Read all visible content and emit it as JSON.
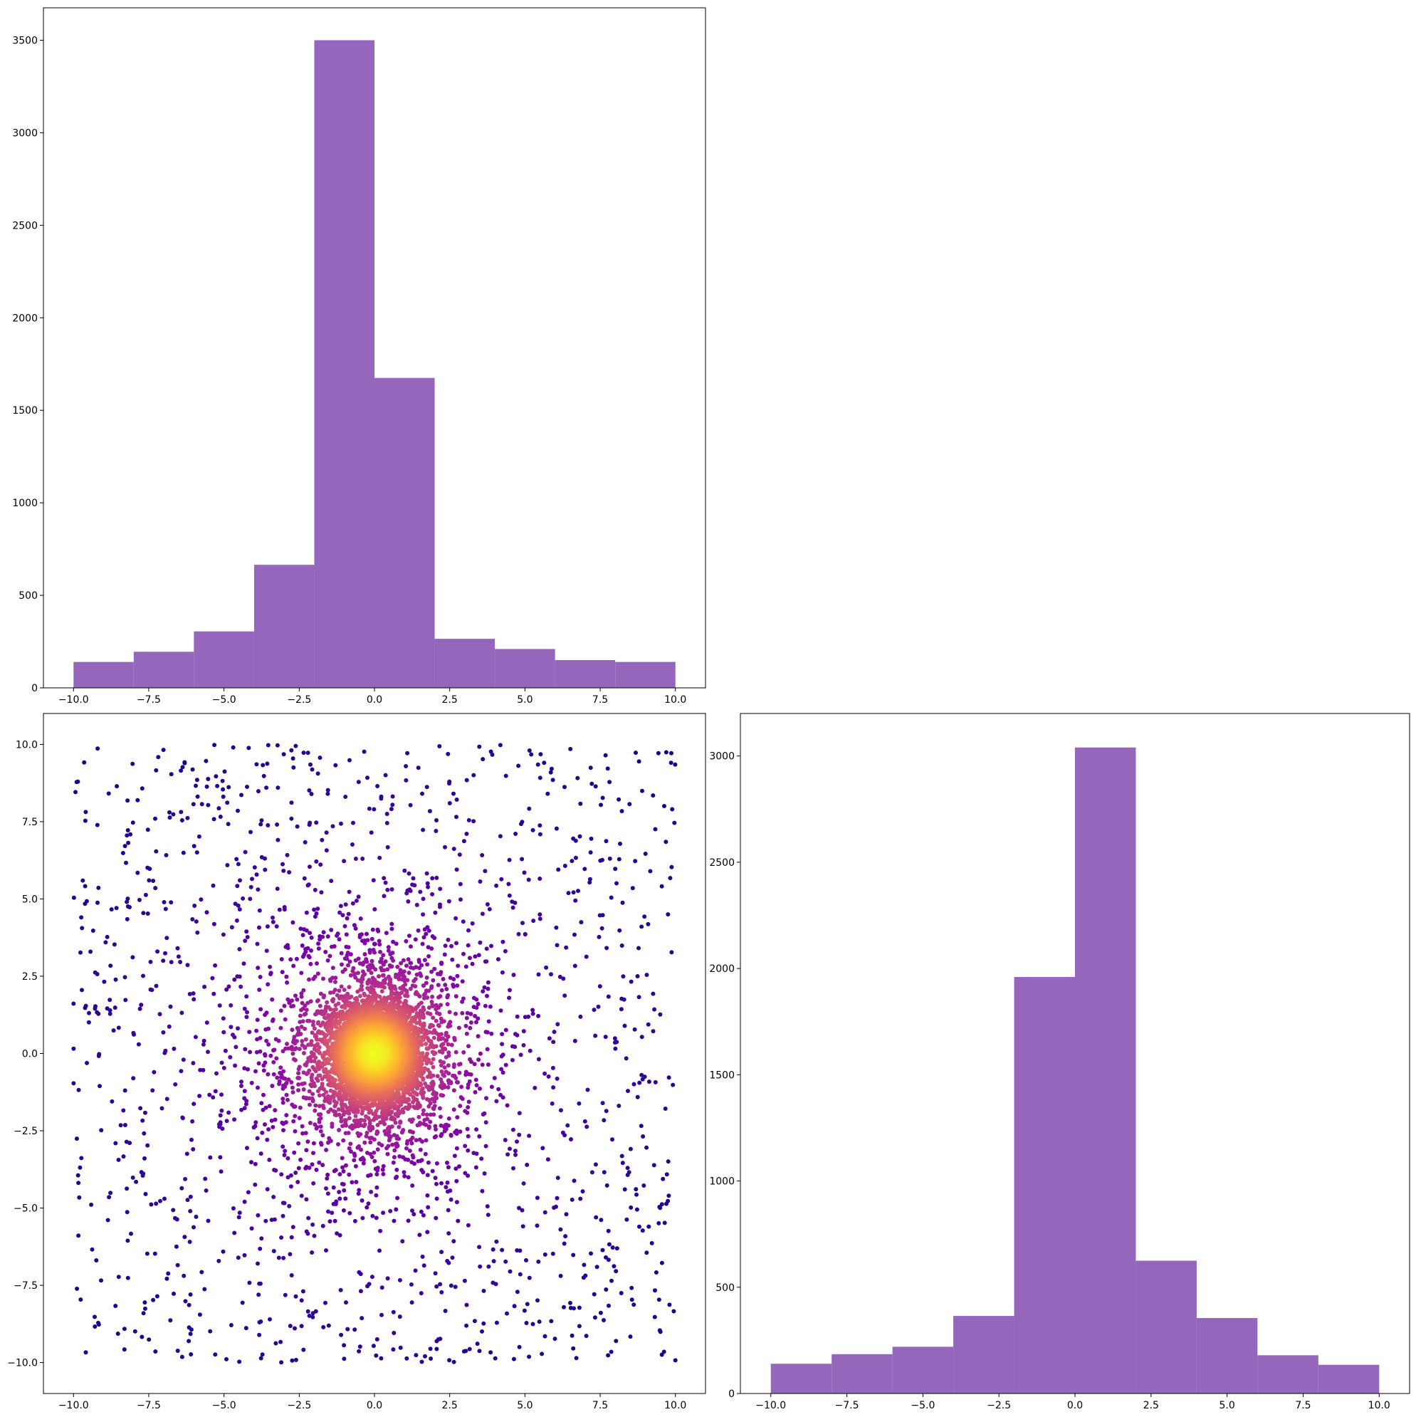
{
  "colors": {
    "histogram_fill": "#9467bd",
    "axes_frame": "#000000",
    "scatter_colormap": "plasma (density-colored: dark purple at edges, yellow at center)"
  },
  "chart_data": [
    {
      "type": "bar",
      "panel": "top-left",
      "variant": "histogram",
      "bin_edges": [
        -10,
        -8,
        -6,
        -4,
        -2,
        0,
        2,
        4,
        6,
        8,
        10
      ],
      "values": [
        140,
        195,
        305,
        665,
        3500,
        1675,
        265,
        210,
        150,
        140
      ],
      "xlim": [
        -11,
        11
      ],
      "ylim": [
        0,
        3675
      ],
      "xticks": [
        -10,
        -7.5,
        -5,
        -2.5,
        0,
        2.5,
        5,
        7.5,
        10
      ],
      "xtick_labels": [
        "−10.0",
        "−7.5",
        "−5.0",
        "−2.5",
        "0.0",
        "2.5",
        "5.0",
        "7.5",
        "10.0"
      ],
      "yticks": [
        0,
        500,
        1000,
        1500,
        2000,
        2500,
        3000,
        3500
      ],
      "ytick_labels": [
        "0",
        "500",
        "1000",
        "1500",
        "2000",
        "2500",
        "3000",
        "3500"
      ],
      "grid": false,
      "title": "",
      "xlabel": "",
      "ylabel": ""
    },
    {
      "type": "scatter",
      "panel": "bottom-left",
      "point_count": 7000,
      "distribution": {
        "center": [
          0,
          0
        ],
        "uniform_background": {
          "count": 1300,
          "x_range": [
            -10,
            10
          ],
          "y_range": [
            -10,
            10
          ]
        },
        "broad_cluster": {
          "count": 1500,
          "sd_x": 1.9,
          "sd_y": 2.2
        },
        "core_cluster": {
          "count": 4200,
          "sd_x": 0.75,
          "sd_y": 0.85
        }
      },
      "color_by": "local density",
      "xlim": [
        -11,
        11
      ],
      "ylim": [
        -11,
        11
      ],
      "xticks": [
        -10,
        -7.5,
        -5,
        -2.5,
        0,
        2.5,
        5,
        7.5,
        10
      ],
      "xtick_labels": [
        "−10.0",
        "−7.5",
        "−5.0",
        "−2.5",
        "0.0",
        "2.5",
        "5.0",
        "7.5",
        "10.0"
      ],
      "yticks": [
        -10,
        -7.5,
        -5,
        -2.5,
        0,
        2.5,
        5,
        7.5,
        10
      ],
      "ytick_labels": [
        "−10.0",
        "−7.5",
        "−5.0",
        "−2.5",
        "0.0",
        "2.5",
        "5.0",
        "7.5",
        "10.0"
      ],
      "grid": false,
      "title": "",
      "xlabel": "",
      "ylabel": ""
    },
    {
      "type": "bar",
      "panel": "bottom-right",
      "variant": "histogram",
      "bin_edges": [
        -10,
        -8,
        -6,
        -4,
        -2,
        0,
        2,
        4,
        6,
        8,
        10
      ],
      "values": [
        140,
        185,
        220,
        365,
        1960,
        3040,
        625,
        355,
        180,
        135
      ],
      "xlim": [
        -11,
        11
      ],
      "ylim": [
        0,
        3200
      ],
      "xticks": [
        -10,
        -7.5,
        -5,
        -2.5,
        0,
        2.5,
        5,
        7.5,
        10
      ],
      "xtick_labels": [
        "−10.0",
        "−7.5",
        "−5.0",
        "−2.5",
        "0.0",
        "2.5",
        "5.0",
        "7.5",
        "10.0"
      ],
      "yticks": [
        0,
        500,
        1000,
        1500,
        2000,
        2500,
        3000
      ],
      "ytick_labels": [
        "0",
        "500",
        "1000",
        "1500",
        "2000",
        "2500",
        "3000"
      ],
      "grid": false,
      "title": "",
      "xlabel": "",
      "ylabel": ""
    }
  ]
}
